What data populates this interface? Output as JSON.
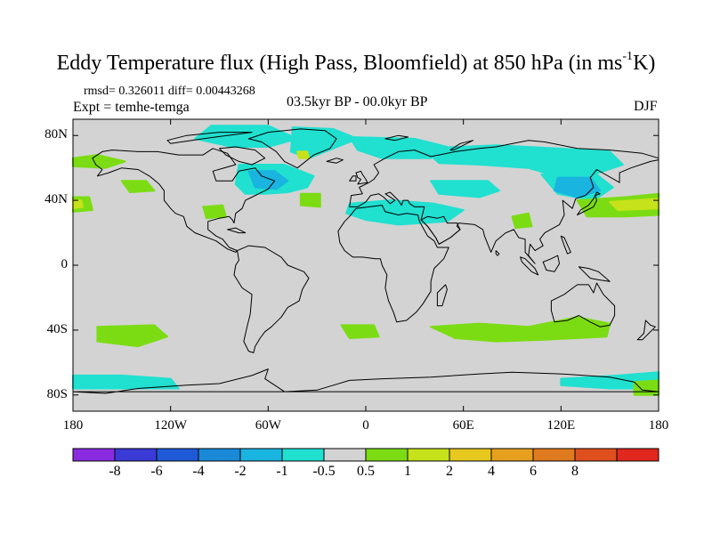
{
  "figure": {
    "title_main": "Eddy Temperature flux (High Pass, Bloomfield) at 850 hPa (in ms",
    "title_sup": "-1",
    "title_end": "K)",
    "rmsd_text": "rmsd= 0.326011 diff= 0.00443268",
    "expt_text": "Expt = temhe-temga",
    "period_text": "03.5kyr BP - 00.0kyr BP",
    "season_text": "DJF"
  },
  "colors": {
    "ocean_neutral": "#d3d3d3",
    "coast": "#000000"
  },
  "chart_data": {
    "type": "heatmap",
    "projection": "cylindrical-equidistant",
    "lon_range": [
      -180,
      180
    ],
    "lat_range": [
      -90,
      90
    ],
    "x_ticks": [
      {
        "value": -180,
        "label": "180"
      },
      {
        "value": -120,
        "label": "120W"
      },
      {
        "value": -60,
        "label": "60W"
      },
      {
        "value": 0,
        "label": "0"
      },
      {
        "value": 60,
        "label": "60E"
      },
      {
        "value": 120,
        "label": "120E"
      },
      {
        "value": 180,
        "label": "180"
      }
    ],
    "y_ticks": [
      {
        "value": 80,
        "label": "80N"
      },
      {
        "value": 40,
        "label": "40N"
      },
      {
        "value": 0,
        "label": "0"
      },
      {
        "value": -40,
        "label": "40S"
      },
      {
        "value": -80,
        "label": "80S"
      }
    ],
    "colorbar": {
      "colors": [
        "#8a2be2",
        "#3a3ad6",
        "#1f5ad6",
        "#1a8ad8",
        "#19b4e0",
        "#20e0d0",
        "#d3d3d3",
        "#7cdc14",
        "#c6e21a",
        "#e6c81e",
        "#e6a01e",
        "#e07a1e",
        "#e0501e",
        "#e0281e"
      ],
      "labels": [
        "-8",
        "-6",
        "-4",
        "-2",
        "-1",
        "-0.5",
        "0.5",
        "1",
        "2",
        "4",
        "6",
        "8"
      ]
    },
    "regions": [
      {
        "name": "arctic-canada-cyan",
        "category": 5,
        "poly": [
          [
            -95,
            86
          ],
          [
            -60,
            86
          ],
          [
            -42,
            78
          ],
          [
            -60,
            73
          ],
          [
            -82,
            73
          ],
          [
            -105,
            78
          ]
        ]
      },
      {
        "name": "greenland-east-cyan",
        "category": 5,
        "poly": [
          [
            -45,
            85
          ],
          [
            -20,
            84
          ],
          [
            -5,
            78
          ],
          [
            -20,
            72
          ],
          [
            -35,
            66
          ],
          [
            -46,
            70
          ]
        ]
      },
      {
        "name": "greenland-yellow",
        "category": 8,
        "poly": [
          [
            -42,
            70
          ],
          [
            -36,
            70
          ],
          [
            -35,
            66
          ],
          [
            -41,
            66
          ]
        ]
      },
      {
        "name": "north-atlantic-cyan",
        "category": 5,
        "poly": [
          [
            -78,
            62
          ],
          [
            -50,
            62
          ],
          [
            -32,
            55
          ],
          [
            -36,
            48
          ],
          [
            -48,
            45
          ],
          [
            -62,
            44
          ],
          [
            -74,
            44
          ],
          [
            -80,
            50
          ]
        ]
      },
      {
        "name": "north-atlantic-blue",
        "category": 4,
        "poly": [
          [
            -72,
            58
          ],
          [
            -56,
            58
          ],
          [
            -48,
            52
          ],
          [
            -55,
            47
          ],
          [
            -68,
            48
          ]
        ]
      },
      {
        "name": "nordic-cyan",
        "category": 5,
        "poly": [
          [
            -10,
            79
          ],
          [
            30,
            78
          ],
          [
            50,
            73
          ],
          [
            40,
            66
          ],
          [
            10,
            66
          ],
          [
            -5,
            71
          ]
        ]
      },
      {
        "name": "siberia-cyan",
        "category": 5,
        "poly": [
          [
            35,
            72
          ],
          [
            80,
            74
          ],
          [
            118,
            72
          ],
          [
            150,
            70
          ],
          [
            158,
            62
          ],
          [
            140,
            56
          ],
          [
            120,
            54
          ],
          [
            100,
            60
          ],
          [
            70,
            62
          ],
          [
            45,
            63
          ]
        ]
      },
      {
        "name": "east-asia-cyan",
        "category": 5,
        "poly": [
          [
            108,
            56
          ],
          [
            142,
            56
          ],
          [
            152,
            48
          ],
          [
            140,
            40
          ],
          [
            118,
            44
          ]
        ]
      },
      {
        "name": "east-asia-blue",
        "category": 4,
        "poly": [
          [
            118,
            54
          ],
          [
            138,
            54
          ],
          [
            144,
            46
          ],
          [
            130,
            42
          ],
          [
            116,
            46
          ]
        ]
      },
      {
        "name": "mediterranean-cyan",
        "category": 5,
        "poly": [
          [
            -10,
            38
          ],
          [
            15,
            40
          ],
          [
            42,
            38
          ],
          [
            60,
            34
          ],
          [
            50,
            27
          ],
          [
            20,
            25
          ],
          [
            0,
            28
          ],
          [
            -12,
            32
          ]
        ]
      },
      {
        "name": "central-asia-cyan",
        "category": 5,
        "poly": [
          [
            40,
            52
          ],
          [
            75,
            52
          ],
          [
            82,
            46
          ],
          [
            70,
            42
          ],
          [
            45,
            44
          ]
        ]
      },
      {
        "name": "west-pacific-green",
        "category": 7,
        "poly": [
          [
            130,
            40
          ],
          [
            160,
            42
          ],
          [
            180,
            44
          ],
          [
            180,
            31
          ],
          [
            160,
            30
          ],
          [
            136,
            30
          ]
        ]
      },
      {
        "name": "west-pacific-yellow",
        "category": 8,
        "poly": [
          [
            150,
            39
          ],
          [
            180,
            41
          ],
          [
            180,
            35
          ],
          [
            155,
            34
          ]
        ]
      },
      {
        "name": "east-pacific-green",
        "category": 7,
        "poly": [
          [
            -180,
            42
          ],
          [
            -170,
            42
          ],
          [
            -168,
            34
          ],
          [
            -180,
            33
          ]
        ]
      },
      {
        "name": "east-pacific-yellow",
        "category": 8,
        "poly": [
          [
            -180,
            40
          ],
          [
            -175,
            40
          ],
          [
            -174,
            36
          ],
          [
            -180,
            35
          ]
        ]
      },
      {
        "name": "alaska-green",
        "category": 7,
        "poly": [
          [
            -180,
            66
          ],
          [
            -165,
            68
          ],
          [
            -148,
            64
          ],
          [
            -160,
            60
          ],
          [
            -180,
            61
          ]
        ]
      },
      {
        "name": "canada-green",
        "category": 7,
        "poly": [
          [
            -150,
            52
          ],
          [
            -135,
            52
          ],
          [
            -130,
            46
          ],
          [
            -145,
            45
          ]
        ]
      },
      {
        "name": "us-green",
        "category": 7,
        "poly": [
          [
            -100,
            36
          ],
          [
            -88,
            37
          ],
          [
            -86,
            30
          ],
          [
            -98,
            29
          ]
        ]
      },
      {
        "name": "azores-green",
        "category": 7,
        "poly": [
          [
            -40,
            44
          ],
          [
            -28,
            44
          ],
          [
            -28,
            36
          ],
          [
            -40,
            37
          ]
        ]
      },
      {
        "name": "india-green",
        "category": 7,
        "poly": [
          [
            90,
            30
          ],
          [
            100,
            32
          ],
          [
            102,
            24
          ],
          [
            92,
            23
          ]
        ]
      },
      {
        "name": "south-pacific-green",
        "category": 7,
        "poly": [
          [
            -165,
            -38
          ],
          [
            -130,
            -37
          ],
          [
            -122,
            -44
          ],
          [
            -140,
            -50
          ],
          [
            -165,
            -47
          ]
        ]
      },
      {
        "name": "south-atlantic-green",
        "category": 7,
        "poly": [
          [
            -15,
            -37
          ],
          [
            5,
            -37
          ],
          [
            8,
            -44
          ],
          [
            -10,
            -45
          ]
        ]
      },
      {
        "name": "south-indian-green",
        "category": 7,
        "poly": [
          [
            40,
            -38
          ],
          [
            70,
            -36
          ],
          [
            100,
            -38
          ],
          [
            130,
            -32
          ],
          [
            150,
            -36
          ],
          [
            148,
            -44
          ],
          [
            110,
            -46
          ],
          [
            80,
            -47
          ],
          [
            55,
            -45
          ]
        ]
      },
      {
        "name": "southern-ocean-cyan-west",
        "category": 5,
        "poly": [
          [
            -180,
            -68
          ],
          [
            -150,
            -68
          ],
          [
            -120,
            -70
          ],
          [
            -115,
            -76
          ],
          [
            -150,
            -76
          ],
          [
            -180,
            -76
          ]
        ]
      },
      {
        "name": "southern-ocean-cyan-east",
        "category": 5,
        "poly": [
          [
            120,
            -70
          ],
          [
            155,
            -68
          ],
          [
            180,
            -66
          ],
          [
            180,
            -76
          ],
          [
            150,
            -76
          ],
          [
            120,
            -74
          ]
        ]
      },
      {
        "name": "southern-ocean-green-east",
        "category": 7,
        "poly": [
          [
            165,
            -72
          ],
          [
            180,
            -71
          ],
          [
            180,
            -80
          ],
          [
            165,
            -80
          ]
        ]
      }
    ]
  }
}
